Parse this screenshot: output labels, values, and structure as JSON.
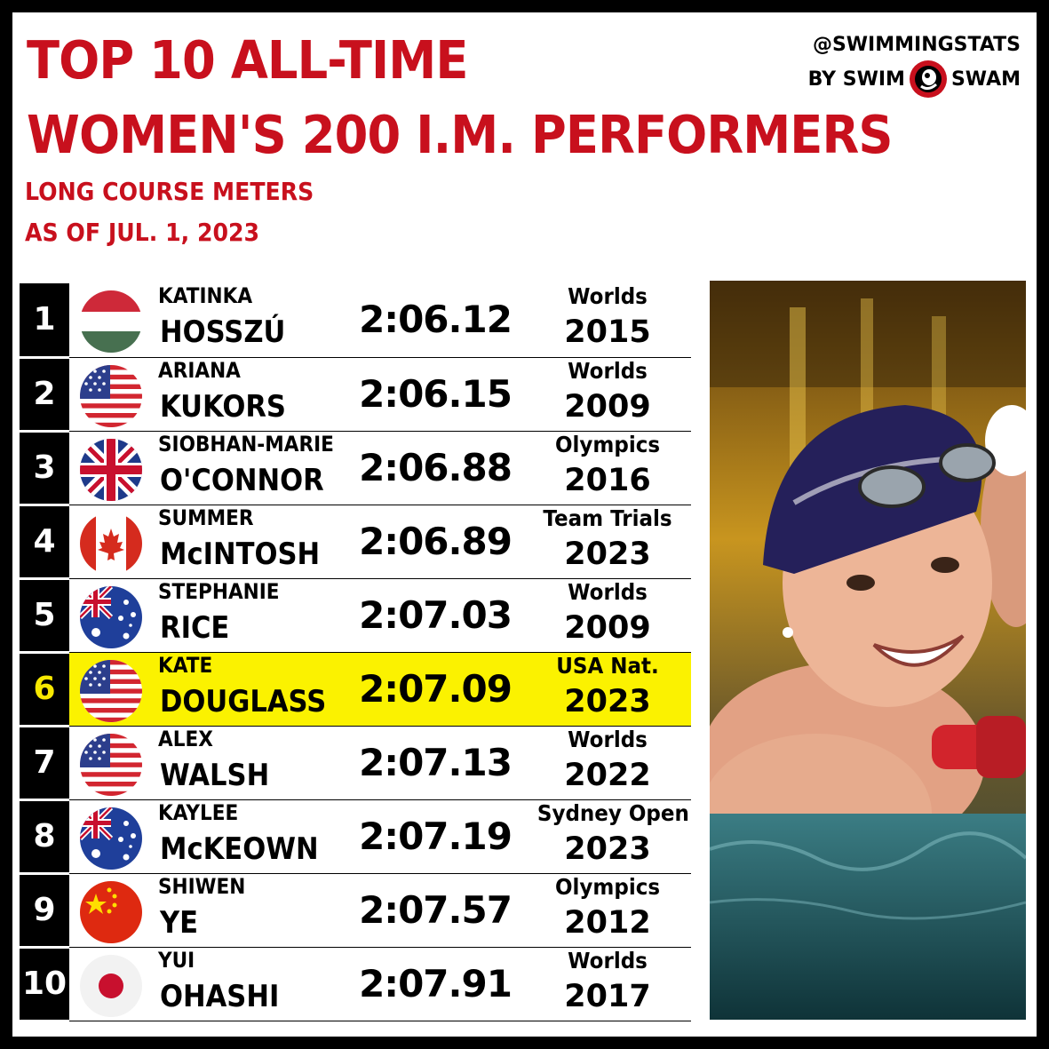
{
  "title": {
    "line1": "TOP 10 ALL-TIME",
    "line2": "WOMEN'S 200 I.M. PERFORMERS"
  },
  "subtitle": {
    "line1": "LONG COURSE METERS",
    "line2": "AS OF JUL. 1, 2023"
  },
  "brand": {
    "handle": "@SWIMMINGSTATS",
    "by_prefix": "BY SWIM",
    "by_suffix": "SWAM",
    "logo_icon": "swimswam-logo-icon"
  },
  "colors": {
    "accent_red": "#c8101d",
    "highlight_yellow": "#fbf200",
    "highlight_rank_text": "#f7e800"
  },
  "rows": [
    {
      "rank": "1",
      "first": "KATINKA",
      "last": "HOSSZÚ",
      "time": "2:06.12",
      "meet": "Worlds",
      "year": "2015",
      "flag": "hungary-flag-icon"
    },
    {
      "rank": "2",
      "first": "ARIANA",
      "last": "KUKORS",
      "time": "2:06.15",
      "meet": "Worlds",
      "year": "2009",
      "flag": "usa-flag-icon"
    },
    {
      "rank": "3",
      "first": "SIOBHAN-MARIE",
      "last": "O'CONNOR",
      "time": "2:06.88",
      "meet": "Olympics",
      "year": "2016",
      "flag": "uk-flag-icon"
    },
    {
      "rank": "4",
      "first": "SUMMER",
      "last": "McINTOSH",
      "time": "2:06.89",
      "meet": "Team Trials",
      "year": "2023",
      "flag": "canada-flag-icon"
    },
    {
      "rank": "5",
      "first": "STEPHANIE",
      "last": "RICE",
      "time": "2:07.03",
      "meet": "Worlds",
      "year": "2009",
      "flag": "australia-flag-icon"
    },
    {
      "rank": "6",
      "first": "KATE",
      "last": "DOUGLASS",
      "time": "2:07.09",
      "meet": "USA Nat.",
      "year": "2023",
      "flag": "usa-flag-icon",
      "highlighted": true
    },
    {
      "rank": "7",
      "first": "ALEX",
      "last": "WALSH",
      "time": "2:07.13",
      "meet": "Worlds",
      "year": "2022",
      "flag": "usa-flag-icon"
    },
    {
      "rank": "8",
      "first": "KAYLEE",
      "last": "McKEOWN",
      "time": "2:07.19",
      "meet": "Sydney Open",
      "year": "2023",
      "flag": "australia-flag-icon"
    },
    {
      "rank": "9",
      "first": "SHIWEN",
      "last": "YE",
      "time": "2:07.57",
      "meet": "Olympics",
      "year": "2012",
      "flag": "china-flag-icon"
    },
    {
      "rank": "10",
      "first": "YUI",
      "last": "OHASHI",
      "time": "2:07.91",
      "meet": "Worlds",
      "year": "2017",
      "flag": "japan-flag-icon"
    }
  ]
}
